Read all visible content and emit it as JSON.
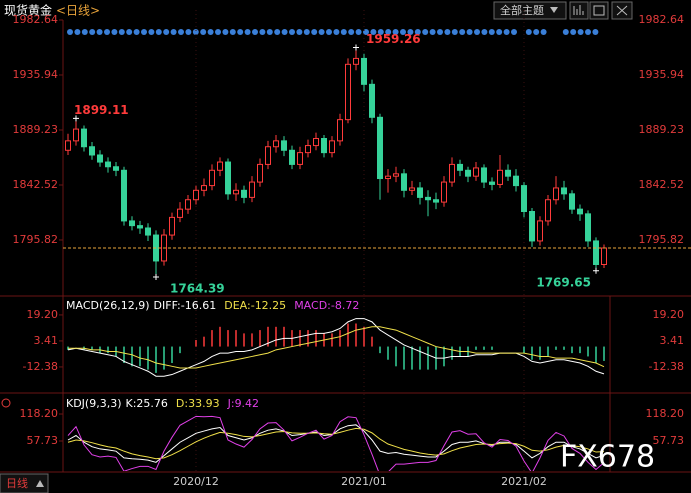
{
  "header": {
    "title": "现货黄金",
    "period": "<日线>",
    "theme": "全部主题"
  },
  "footer": {
    "period": "日线",
    "watermark": "FX678"
  },
  "chart_data": [
    {
      "type": "candlestick",
      "up_color": "#ff3b3b",
      "down_color": "#36d39a",
      "last_line_color": "#e8a33a",
      "categories": [
        null,
        null,
        null,
        null,
        null,
        null,
        null,
        null,
        null,
        null,
        null,
        null,
        null,
        null,
        null,
        null,
        "2020/12",
        null,
        null,
        null,
        null,
        null,
        null,
        null,
        null,
        null,
        null,
        null,
        null,
        null,
        null,
        null,
        null,
        null,
        null,
        null,
        null,
        "2021/01",
        null,
        null,
        null,
        null,
        null,
        null,
        null,
        null,
        null,
        null,
        null,
        null,
        null,
        null,
        null,
        null,
        null,
        null,
        null,
        "2021/02",
        null,
        null,
        null,
        null,
        null,
        null,
        null,
        null,
        null,
        null
      ],
      "candles": [
        [
          1872,
          1886,
          1868,
          1880
        ],
        [
          1880,
          1899.11,
          1876,
          1890
        ],
        [
          1890,
          1893,
          1871,
          1875
        ],
        [
          1875,
          1879,
          1864,
          1868
        ],
        [
          1868,
          1872,
          1858,
          1862
        ],
        [
          1862,
          1866,
          1853,
          1858
        ],
        [
          1858,
          1862,
          1850,
          1855
        ],
        [
          1855,
          1858,
          1808,
          1812
        ],
        [
          1812,
          1816,
          1804,
          1808
        ],
        [
          1808,
          1812,
          1801,
          1806
        ],
        [
          1806,
          1810,
          1795,
          1800
        ],
        [
          1800,
          1804,
          1764.39,
          1778
        ],
        [
          1778,
          1805,
          1774,
          1800
        ],
        [
          1800,
          1819,
          1796,
          1815
        ],
        [
          1815,
          1828,
          1811,
          1822
        ],
        [
          1822,
          1834,
          1818,
          1830
        ],
        [
          1830,
          1842,
          1826,
          1838
        ],
        [
          1838,
          1848,
          1833,
          1842
        ],
        [
          1842,
          1860,
          1838,
          1855
        ],
        [
          1855,
          1866,
          1850,
          1862
        ],
        [
          1862,
          1865,
          1830,
          1835
        ],
        [
          1835,
          1844,
          1829,
          1838
        ],
        [
          1838,
          1842,
          1827,
          1832
        ],
        [
          1832,
          1850,
          1828,
          1845
        ],
        [
          1845,
          1865,
          1841,
          1860
        ],
        [
          1860,
          1880,
          1856,
          1875
        ],
        [
          1875,
          1885,
          1870,
          1880
        ],
        [
          1880,
          1884,
          1867,
          1872
        ],
        [
          1872,
          1876,
          1856,
          1860
        ],
        [
          1860,
          1875,
          1856,
          1870
        ],
        [
          1870,
          1881,
          1866,
          1876
        ],
        [
          1876,
          1887,
          1872,
          1882
        ],
        [
          1882,
          1885,
          1866,
          1870
        ],
        [
          1870,
          1884,
          1866,
          1880
        ],
        [
          1880,
          1903,
          1876,
          1898
        ],
        [
          1898,
          1950,
          1895,
          1945
        ],
        [
          1945,
          1959.26,
          1940,
          1950
        ],
        [
          1950,
          1954,
          1922,
          1928
        ],
        [
          1928,
          1932,
          1895,
          1900
        ],
        [
          1900,
          1903,
          1830,
          1848
        ],
        [
          1848,
          1856,
          1836,
          1850
        ],
        [
          1850,
          1858,
          1845,
          1852
        ],
        [
          1852,
          1856,
          1832,
          1838
        ],
        [
          1838,
          1846,
          1834,
          1840
        ],
        [
          1840,
          1845,
          1826,
          1832
        ],
        [
          1832,
          1838,
          1816,
          1830
        ],
        [
          1830,
          1836,
          1822,
          1828
        ],
        [
          1828,
          1850,
          1824,
          1845
        ],
        [
          1845,
          1866,
          1841,
          1860
        ],
        [
          1860,
          1864,
          1850,
          1855
        ],
        [
          1855,
          1858,
          1845,
          1850
        ],
        [
          1850,
          1862,
          1846,
          1857
        ],
        [
          1857,
          1860,
          1840,
          1845
        ],
        [
          1845,
          1849,
          1838,
          1843
        ],
        [
          1843,
          1868,
          1840,
          1855
        ],
        [
          1855,
          1860,
          1846,
          1850
        ],
        [
          1850,
          1856,
          1837,
          1842
        ],
        [
          1842,
          1845,
          1815,
          1820
        ],
        [
          1820,
          1823,
          1790,
          1795
        ],
        [
          1795,
          1816,
          1791,
          1812
        ],
        [
          1812,
          1834,
          1808,
          1830
        ],
        [
          1830,
          1850,
          1826,
          1840
        ],
        [
          1840,
          1846,
          1830,
          1835
        ],
        [
          1835,
          1838,
          1818,
          1822
        ],
        [
          1822,
          1826,
          1812,
          1818
        ],
        [
          1818,
          1821,
          1790,
          1795
        ],
        [
          1795,
          1798,
          1769.65,
          1775
        ],
        [
          1775,
          1792,
          1772,
          1789
        ]
      ],
      "ylim": [
        1749.09,
        1991.13
      ],
      "yticks": [
        1795.82,
        1842.52,
        1889.23,
        1935.94,
        1982.64
      ]
    },
    {
      "type": "macd",
      "title": "MACD(26,12,9)",
      "series": [
        {
          "name": "DIFF:",
          "color": "#ffffff",
          "values": [
            -2,
            -1,
            -2,
            -3,
            -4,
            -5,
            -6,
            -9,
            -11,
            -13,
            -15,
            -18,
            -18,
            -17,
            -15,
            -13,
            -11,
            -9,
            -6,
            -4,
            -4,
            -3,
            -3,
            -2,
            0,
            2,
            4,
            5,
            5,
            6,
            7,
            8,
            8,
            9,
            11,
            15,
            17,
            17,
            15,
            10,
            7,
            4,
            1,
            -1,
            -3,
            -5,
            -7,
            -7,
            -6,
            -6,
            -6,
            -5,
            -5,
            -5,
            -4,
            -4,
            -4,
            -6,
            -9,
            -10,
            -9,
            -8,
            -8,
            -9,
            -10,
            -12,
            -15,
            -16.61
          ]
        },
        {
          "name": "DEA:",
          "color": "#f0e04a",
          "values": [
            -1,
            -1,
            -1,
            -2,
            -2,
            -3,
            -3,
            -4,
            -5,
            -7,
            -8,
            -10,
            -11,
            -12,
            -13,
            -13,
            -13,
            -12,
            -11,
            -10,
            -9,
            -8,
            -7,
            -6,
            -5,
            -4,
            -2,
            -1,
            0,
            1,
            2,
            3,
            4,
            5,
            6,
            8,
            10,
            11,
            12,
            12,
            11,
            10,
            8,
            6,
            4,
            2,
            0,
            -1,
            -2,
            -3,
            -3,
            -4,
            -4,
            -4,
            -4,
            -4,
            -4,
            -4,
            -5,
            -6,
            -6,
            -7,
            -7,
            -7,
            -8,
            -9,
            -10,
            -12.25
          ]
        },
        {
          "name": "MACD:",
          "color": "#e040e8",
          "type": "bar",
          "up_color": "#ff3b3b",
          "down_color": "#36d39a",
          "values": [
            -2,
            0,
            -2,
            -2,
            -4,
            -4,
            -6,
            -10,
            -12,
            -12,
            -14,
            -16,
            -14,
            -10,
            -4,
            0,
            4,
            6,
            10,
            12,
            10,
            10,
            8,
            8,
            10,
            12,
            12,
            12,
            10,
            10,
            10,
            10,
            8,
            8,
            10,
            14,
            14,
            12,
            6,
            -4,
            -8,
            -12,
            -14,
            -14,
            -14,
            -14,
            -14,
            -12,
            -8,
            -6,
            -6,
            -2,
            -2,
            -2,
            0,
            0,
            0,
            -4,
            -8,
            -8,
            -6,
            -2,
            -2,
            -4,
            -4,
            -6,
            -10,
            -8.72
          ]
        }
      ],
      "ylim": [
        -27.6,
        30.1
      ],
      "yticks": [
        -12.38,
        3.41,
        {
          "value": 19.2,
          "label": "19.20"
        }
      ]
    },
    {
      "type": "line",
      "title": "KDJ(9,3,3)",
      "series": [
        {
          "name": "K:",
          "color": "#ffffff",
          "values": [
            60,
            70,
            55,
            45,
            40,
            38,
            35,
            20,
            18,
            17,
            15,
            10,
            25,
            40,
            55,
            65,
            75,
            80,
            85,
            88,
            70,
            65,
            60,
            65,
            75,
            82,
            85,
            80,
            70,
            72,
            75,
            78,
            70,
            72,
            85,
            92,
            94,
            80,
            60,
            35,
            30,
            32,
            28,
            26,
            24,
            22,
            22,
            35,
            50,
            55,
            55,
            58,
            52,
            48,
            55,
            55,
            50,
            35,
            20,
            30,
            45,
            55,
            55,
            45,
            40,
            30,
            20,
            25.76
          ]
        },
        {
          "name": "D:",
          "color": "#f0e04a",
          "values": [
            55,
            60,
            58,
            54,
            49,
            45,
            42,
            35,
            29,
            25,
            22,
            18,
            20,
            27,
            36,
            46,
            56,
            64,
            71,
            77,
            75,
            72,
            68,
            67,
            70,
            74,
            78,
            79,
            76,
            75,
            75,
            76,
            74,
            73,
            77,
            82,
            86,
            84,
            76,
            62,
            51,
            45,
            39,
            35,
            31,
            28,
            26,
            29,
            36,
            42,
            46,
            50,
            51,
            50,
            52,
            53,
            52,
            46,
            37,
            35,
            38,
            44,
            48,
            47,
            45,
            40,
            33,
            33.93
          ]
        },
        {
          "name": "J:",
          "color": "#e040e8",
          "values": [
            70,
            90,
            49,
            27,
            22,
            24,
            21,
            -10,
            -4,
            1,
            1,
            -6,
            35,
            66,
            93,
            103,
            113,
            112,
            113,
            110,
            60,
            51,
            44,
            61,
            85,
            98,
            99,
            82,
            58,
            66,
            75,
            82,
            62,
            70,
            101,
            112,
            110,
            72,
            28,
            -19,
            -12,
            6,
            6,
            8,
            10,
            10,
            14,
            47,
            78,
            81,
            73,
            74,
            54,
            44,
            61,
            59,
            46,
            13,
            -14,
            20,
            59,
            77,
            69,
            41,
            30,
            10,
            -6,
            9.42
          ]
        }
      ],
      "ylim": [
        -7.2,
        160.8
      ],
      "yticks": [
        57.73,
        {
          "value": 118.2,
          "label": "118.20"
        }
      ]
    }
  ]
}
